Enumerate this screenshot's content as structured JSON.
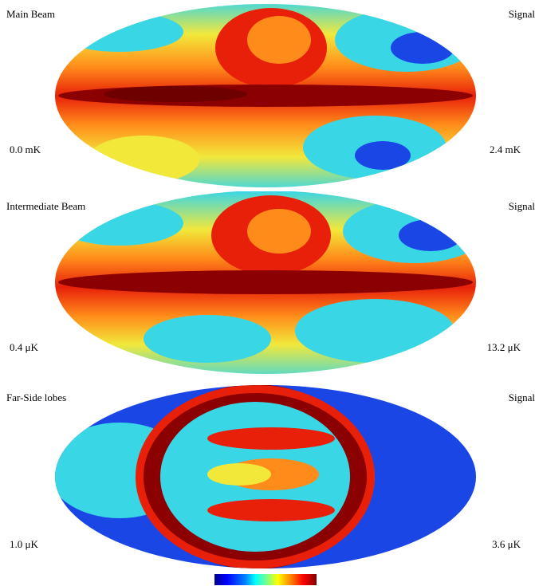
{
  "panels": [
    {
      "title": "Main Beam",
      "kind": "Signal",
      "min": "0.0 mK",
      "max": "2.4 mK"
    },
    {
      "title": "Intermediate Beam",
      "kind": "Signal",
      "min": "0.4 μK",
      "max": "13.2 μK"
    },
    {
      "title": "Far-Side lobes",
      "kind": "Signal",
      "min": "1.0 μK",
      "max": "3.6 μK"
    }
  ],
  "colors": {
    "dark_red": "#8b0000",
    "red": "#e8200a",
    "orange": "#ff8c1a",
    "yellow": "#f2e83a",
    "cyan": "#39d6e6",
    "blue": "#1a46e6",
    "navy": "#0a1fa8"
  },
  "colorbar": {
    "colormap": "jet"
  }
}
